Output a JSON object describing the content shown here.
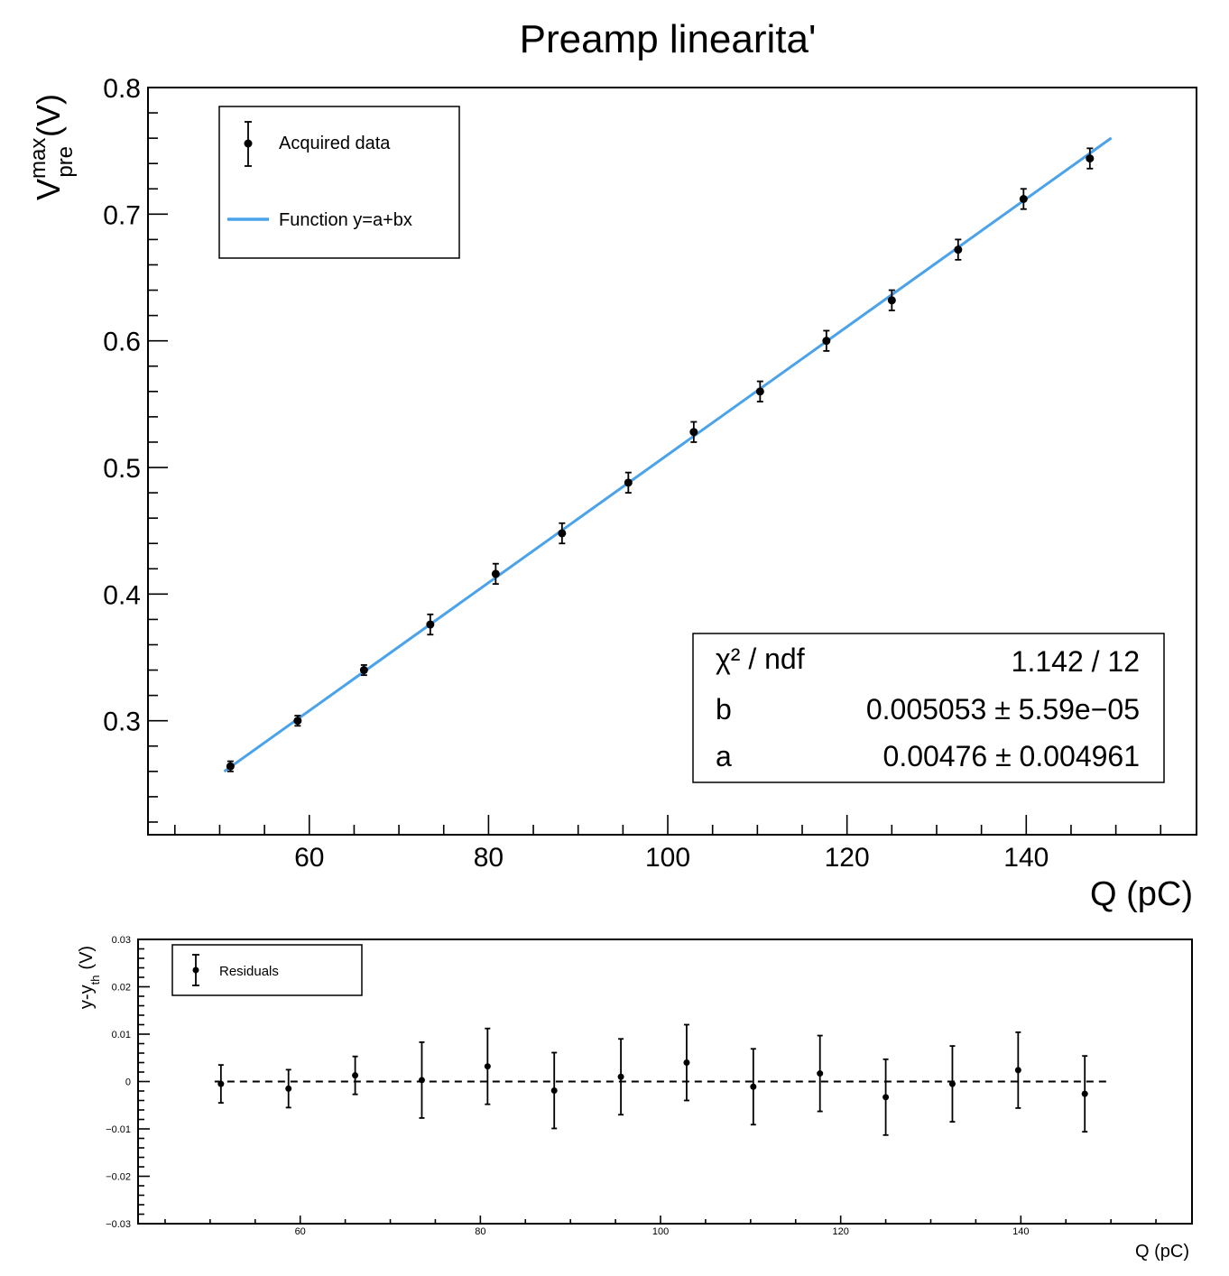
{
  "chart_data": [
    {
      "type": "scatter",
      "title": "Preamp linearita'",
      "xlabel": "Q (pC)",
      "ylabel": {
        "main": "V",
        "sup": "max",
        "sub": "pre",
        "unit": "(V)"
      },
      "xlim": [
        42,
        159
      ],
      "ylim": [
        0.21,
        0.8
      ],
      "x_ticks": [
        60,
        80,
        100,
        120,
        140
      ],
      "y_ticks": [
        0.3,
        0.4,
        0.5,
        0.6,
        0.7,
        0.8
      ],
      "y_tick_labels": [
        "0.3",
        "0.4",
        "0.5",
        "0.6",
        "0.7",
        "0.8"
      ],
      "legend": {
        "position": "top-left",
        "entries": [
          "Acquired data",
          "Function y=a+bx"
        ]
      },
      "series": [
        {
          "name": "Acquired data",
          "x": [
            51.2,
            58.7,
            66.1,
            73.5,
            80.8,
            88.2,
            95.6,
            102.9,
            110.3,
            117.7,
            125.0,
            132.4,
            139.7,
            147.1
          ],
          "y": [
            0.264,
            0.3,
            0.34,
            0.376,
            0.416,
            0.448,
            0.488,
            0.528,
            0.56,
            0.6,
            0.632,
            0.672,
            0.712,
            0.744
          ],
          "yerr": [
            0.004,
            0.004,
            0.004,
            0.008,
            0.008,
            0.008,
            0.008,
            0.008,
            0.008,
            0.008,
            0.008,
            0.008,
            0.008,
            0.008
          ]
        },
        {
          "name": "Function y=a+bx",
          "fit": {
            "a": 0.00476,
            "b": 0.005053
          },
          "x_range": [
            50.5,
            149.5
          ],
          "color": "#4aa3ea"
        }
      ],
      "stats_box": {
        "position": "bottom-right",
        "rows": [
          {
            "label": "χ² / ndf",
            "value": "1.142 / 12"
          },
          {
            "label": "b",
            "value": "0.005053 ± 5.59e−05"
          },
          {
            "label": "a",
            "value": "0.00476 ± 0.004961"
          }
        ]
      }
    },
    {
      "type": "scatter",
      "title": "",
      "xlabel": "Q (pC)",
      "ylabel": {
        "main": "y-y",
        "sub": "th",
        "unit": "(V)"
      },
      "xlim": [
        42,
        159
      ],
      "ylim": [
        -0.03,
        0.03
      ],
      "x_ticks": [
        60,
        80,
        100,
        120,
        140
      ],
      "y_ticks": [
        -0.03,
        -0.02,
        -0.01,
        0,
        0.01,
        0.02,
        0.03
      ],
      "y_tick_labels": [
        "−0.03",
        "−0.02",
        "−0.01",
        "0",
        "0.01",
        "0.02",
        "0.03"
      ],
      "legend": {
        "position": "top-left",
        "entries": [
          "Residuals"
        ]
      },
      "zero_line": {
        "y": 0,
        "x_range": [
          50.5,
          149.5
        ],
        "style": "dashed"
      },
      "series": [
        {
          "name": "Residuals",
          "x": [
            51.2,
            58.7,
            66.1,
            73.5,
            80.8,
            88.2,
            95.6,
            102.9,
            110.3,
            117.7,
            125.0,
            132.4,
            139.7,
            147.1
          ],
          "y": [
            -0.0005,
            -0.0015,
            0.0013,
            0.0003,
            0.0032,
            -0.0019,
            0.001,
            0.004,
            -0.0011,
            0.0017,
            -0.0033,
            -0.0005,
            0.0024,
            -0.0026
          ],
          "yerr": [
            0.004,
            0.004,
            0.004,
            0.008,
            0.008,
            0.008,
            0.008,
            0.008,
            0.008,
            0.008,
            0.008,
            0.008,
            0.008,
            0.008
          ]
        }
      ]
    }
  ],
  "colors": {
    "fit_line": "#4aa3ea",
    "markers": "#000000",
    "background": "#ffffff"
  }
}
